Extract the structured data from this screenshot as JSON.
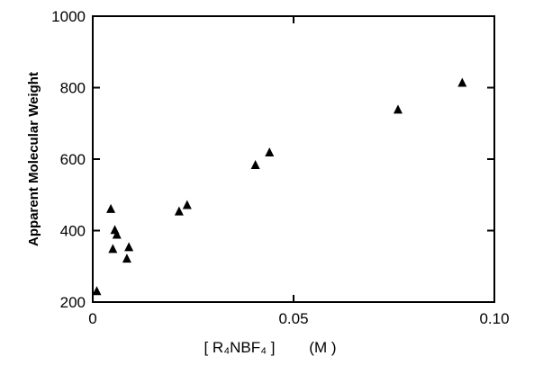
{
  "chart_data": {
    "type": "scatter",
    "title": "",
    "xlabel": "[ R₄NBF₄ ]        (M )",
    "ylabel": "Apparent Molecular Weight",
    "xlim": [
      0,
      0.1
    ],
    "ylim": [
      200,
      1000
    ],
    "x_ticks": [
      0,
      0.05,
      0.1
    ],
    "x_tick_labels": [
      "0",
      "0.05",
      "0.10"
    ],
    "y_ticks": [
      200,
      400,
      600,
      800,
      1000
    ],
    "y_tick_labels": [
      "200",
      "400",
      "600",
      "800",
      "1000"
    ],
    "grid": false,
    "marker": "triangle",
    "color": "#000000",
    "series": [
      {
        "points": [
          [
            0.001,
            232
          ],
          [
            0.0045,
            462
          ],
          [
            0.005,
            350
          ],
          [
            0.0055,
            403
          ],
          [
            0.006,
            390
          ],
          [
            0.0085,
            323
          ],
          [
            0.009,
            355
          ],
          [
            0.0215,
            455
          ],
          [
            0.0235,
            473
          ],
          [
            0.0405,
            585
          ],
          [
            0.044,
            620
          ],
          [
            0.076,
            740
          ],
          [
            0.092,
            815
          ]
        ]
      }
    ]
  }
}
